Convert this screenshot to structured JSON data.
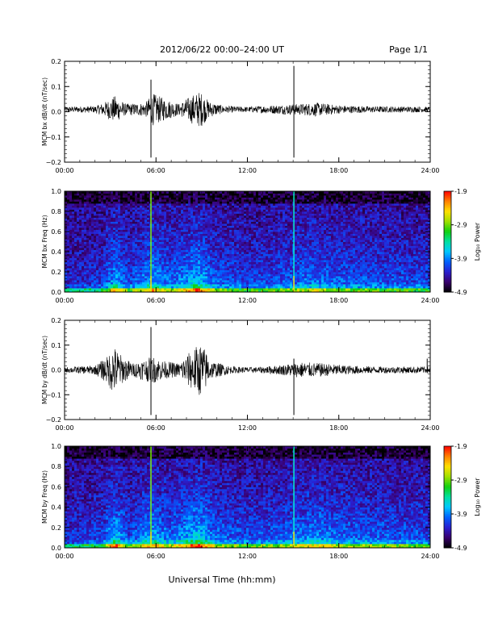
{
  "header": {
    "title": "2012/06/22  00:00–24:00 UT",
    "page": "Page 1/1"
  },
  "footer": {
    "xlabel": "Universal Time (hh:mm)"
  },
  "colorbar": {
    "label": "Log₁₀ Power",
    "ticks": [
      "-1.9",
      "-2.9",
      "-3.9",
      "-4.9"
    ],
    "range": [
      -4.9,
      -1.9
    ],
    "colors": [
      "#000000",
      "#3a006e",
      "#2a1fd0",
      "#0060ff",
      "#00c8ff",
      "#00e0a0",
      "#10d010",
      "#a0e000",
      "#ffe000",
      "#ff8000",
      "#ff0000"
    ]
  },
  "chart_data": [
    {
      "type": "line",
      "ylabel": "MCM bx dB/dt (nT/sec)",
      "xlim": [
        0,
        24
      ],
      "xticks": [
        "00:00",
        "06:00",
        "12:00",
        "18:00",
        "24:00"
      ],
      "ylim": [
        -0.22,
        0.22
      ],
      "yticks": [
        "0.2",
        "0.1",
        "0.0",
        "−0.1",
        "−0.2"
      ],
      "baseline": 0.01,
      "spikes": [
        {
          "hour": 5.67,
          "min": -0.2,
          "max": 0.14
        },
        {
          "hour": 15.05,
          "min": -0.2,
          "max": 0.2
        }
      ],
      "envelope": [
        {
          "hour": 0.0,
          "amp": 0.012
        },
        {
          "hour": 2.0,
          "amp": 0.015
        },
        {
          "hour": 2.6,
          "amp": 0.03
        },
        {
          "hour": 3.3,
          "amp": 0.06
        },
        {
          "hour": 4.0,
          "amp": 0.025
        },
        {
          "hour": 5.3,
          "amp": 0.03
        },
        {
          "hour": 5.8,
          "amp": 0.07
        },
        {
          "hour": 6.5,
          "amp": 0.05
        },
        {
          "hour": 7.5,
          "amp": 0.025
        },
        {
          "hour": 8.3,
          "amp": 0.06
        },
        {
          "hour": 8.9,
          "amp": 0.08
        },
        {
          "hour": 9.5,
          "amp": 0.035
        },
        {
          "hour": 10.5,
          "amp": 0.015
        },
        {
          "hour": 12.0,
          "amp": 0.012
        },
        {
          "hour": 13.5,
          "amp": 0.018
        },
        {
          "hour": 15.5,
          "amp": 0.025
        },
        {
          "hour": 16.5,
          "amp": 0.03
        },
        {
          "hour": 18.0,
          "amp": 0.018
        },
        {
          "hour": 20.0,
          "amp": 0.014
        },
        {
          "hour": 24.0,
          "amp": 0.012
        }
      ]
    },
    {
      "type": "heatmap",
      "ylabel": "MCM bx Freq (Hz)",
      "xlim": [
        0,
        24
      ],
      "xticks": [
        "00:00",
        "06:00",
        "12:00",
        "18:00",
        "24:00"
      ],
      "ylim": [
        0,
        1.0
      ],
      "yticks": [
        "1.0",
        "0.8",
        "0.6",
        "0.4",
        "0.2",
        "0.0"
      ],
      "zlim": [
        -4.9,
        -1.9
      ],
      "spike_hours": [
        5.67,
        15.05
      ],
      "activity": [
        {
          "hour": 0.0,
          "level": 0.2
        },
        {
          "hour": 2.5,
          "level": 0.3
        },
        {
          "hour": 3.3,
          "level": 0.7
        },
        {
          "hour": 4.2,
          "level": 0.35
        },
        {
          "hour": 5.8,
          "level": 0.7
        },
        {
          "hour": 7.0,
          "level": 0.45
        },
        {
          "hour": 8.7,
          "level": 0.8
        },
        {
          "hour": 10.0,
          "level": 0.45
        },
        {
          "hour": 12.0,
          "level": 0.35
        },
        {
          "hour": 14.0,
          "level": 0.4
        },
        {
          "hour": 16.5,
          "level": 0.55
        },
        {
          "hour": 18.0,
          "level": 0.45
        },
        {
          "hour": 21.0,
          "level": 0.4
        },
        {
          "hour": 24.0,
          "level": 0.35
        }
      ]
    },
    {
      "type": "line",
      "ylabel": "MCM by dB/dt (nT/sec)",
      "xlim": [
        0,
        24
      ],
      "xticks": [
        "00:00",
        "06:00",
        "12:00",
        "18:00",
        "24:00"
      ],
      "ylim": [
        -0.22,
        0.22
      ],
      "yticks": [
        "0.2",
        "0.1",
        "0.0",
        "−0.1",
        "−0.2"
      ],
      "baseline": 0.0,
      "spikes": [
        {
          "hour": 5.67,
          "min": -0.2,
          "max": 0.19
        },
        {
          "hour": 15.05,
          "min": -0.2,
          "max": 0.05
        },
        {
          "hour": 23.8,
          "min": -0.01,
          "max": 0.05
        }
      ],
      "envelope": [
        {
          "hour": 0.0,
          "amp": 0.012
        },
        {
          "hour": 2.0,
          "amp": 0.02
        },
        {
          "hour": 2.8,
          "amp": 0.06
        },
        {
          "hour": 3.2,
          "amp": 0.11
        },
        {
          "hour": 3.8,
          "amp": 0.06
        },
        {
          "hour": 4.5,
          "amp": 0.03
        },
        {
          "hour": 5.8,
          "amp": 0.06
        },
        {
          "hour": 6.5,
          "amp": 0.04
        },
        {
          "hour": 7.5,
          "amp": 0.03
        },
        {
          "hour": 8.5,
          "amp": 0.1
        },
        {
          "hour": 9.0,
          "amp": 0.12
        },
        {
          "hour": 9.6,
          "amp": 0.04
        },
        {
          "hour": 11.0,
          "amp": 0.015
        },
        {
          "hour": 12.5,
          "amp": 0.012
        },
        {
          "hour": 14.0,
          "amp": 0.02
        },
        {
          "hour": 15.5,
          "amp": 0.035
        },
        {
          "hour": 16.8,
          "amp": 0.03
        },
        {
          "hour": 18.5,
          "amp": 0.02
        },
        {
          "hour": 20.5,
          "amp": 0.015
        },
        {
          "hour": 24.0,
          "amp": 0.015
        }
      ]
    },
    {
      "type": "heatmap",
      "ylabel": "MCM by Freq (Hz)",
      "xlim": [
        0,
        24
      ],
      "xticks": [
        "00:00",
        "06:00",
        "12:00",
        "18:00",
        "24:00"
      ],
      "ylim": [
        0,
        1.0
      ],
      "yticks": [
        "1.0",
        "0.8",
        "0.6",
        "0.4",
        "0.2",
        "0.0"
      ],
      "zlim": [
        -4.9,
        -1.9
      ],
      "spike_hours": [
        5.67,
        15.05
      ],
      "activity": [
        {
          "hour": 0.0,
          "level": 0.25
        },
        {
          "hour": 2.5,
          "level": 0.35
        },
        {
          "hour": 3.3,
          "level": 0.8
        },
        {
          "hour": 4.2,
          "level": 0.4
        },
        {
          "hour": 5.8,
          "level": 0.7
        },
        {
          "hour": 7.0,
          "level": 0.5
        },
        {
          "hour": 8.8,
          "level": 0.85
        },
        {
          "hour": 10.0,
          "level": 0.5
        },
        {
          "hour": 12.0,
          "level": 0.4
        },
        {
          "hour": 14.0,
          "level": 0.45
        },
        {
          "hour": 16.5,
          "level": 0.6
        },
        {
          "hour": 18.0,
          "level": 0.5
        },
        {
          "hour": 21.0,
          "level": 0.45
        },
        {
          "hour": 24.0,
          "level": 0.4
        }
      ]
    }
  ]
}
